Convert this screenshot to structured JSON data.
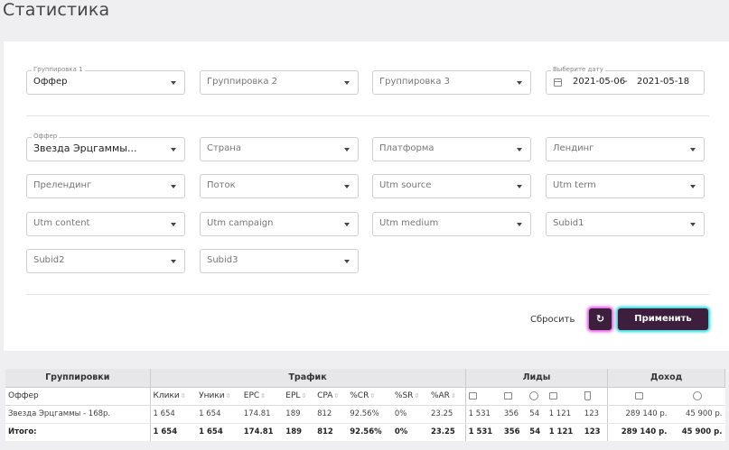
{
  "page": {
    "title": "Статистика"
  },
  "grouping": {
    "g1": {
      "legend": "Группировка 1",
      "value": "Оффер"
    },
    "g2": {
      "placeholder": "Группировка 2"
    },
    "g3": {
      "placeholder": "Группировка 3"
    },
    "date": {
      "legend": "Выберите дату",
      "from": "2021-05-06",
      "sep": "-",
      "to": "2021-05-18"
    }
  },
  "filters": {
    "offer": {
      "legend": "Оффер",
      "value": "Звезда Эрцгаммы..."
    },
    "country": "Страна",
    "platform": "Платформа",
    "landing": "Лендинг",
    "prelanding": "Прелендинг",
    "stream": "Поток",
    "utm_source": "Utm source",
    "utm_term": "Utm term",
    "utm_content": "Utm content",
    "utm_campaign": "Utm campaign",
    "utm_medium": "Utm medium",
    "subid1": "Subid1",
    "subid2": "Subid2",
    "subid3": "Subid3"
  },
  "actions": {
    "reset": "Сбросить",
    "refresh_icon": "↻",
    "apply": "Применить"
  },
  "table": {
    "groups": {
      "grouping": "Группировки",
      "traffic": "Трафик",
      "leads": "Лиды",
      "income": "Доход"
    },
    "columns": {
      "offer": "Оффер",
      "clicks": "Клики",
      "uniques": "Уники",
      "epc": "EPC",
      "epl": "EPL",
      "cpa": "CPA",
      "cr": "%CR",
      "sr": "%SR",
      "ar": "%AR"
    },
    "icons": [
      "leads-total-icon",
      "leads-approved-icon",
      "leads-hold-icon",
      "leads-rejected-icon",
      "leads-trash-icon",
      "income-approved-icon",
      "income-hold-icon"
    ],
    "rows": [
      {
        "name": "Звезда Эрцгаммы - 168р.",
        "clicks": "1 654",
        "uniques": "1 654",
        "epc": "174.81",
        "epl": "189",
        "cpa": "812",
        "cr": "92.56%",
        "sr": "0%",
        "ar": "23.25",
        "leads_total": "1 531",
        "leads_approved": "356",
        "leads_hold": "54",
        "leads_rejected": "1 121",
        "leads_trash": "123",
        "income_approved": "289 140 р.",
        "income_hold": "45 900 р."
      }
    ],
    "total": {
      "name": "Итого:",
      "clicks": "1 654",
      "uniques": "1 654",
      "epc": "174.81",
      "epl": "189",
      "cpa": "812",
      "cr": "92.56%",
      "sr": "0%",
      "ar": "23.25",
      "leads_total": "1 531",
      "leads_approved": "356",
      "leads_hold": "54",
      "leads_rejected": "1 121",
      "leads_trash": "123",
      "income_approved": "289 140 р.",
      "income_hold": "45 900 р."
    }
  }
}
